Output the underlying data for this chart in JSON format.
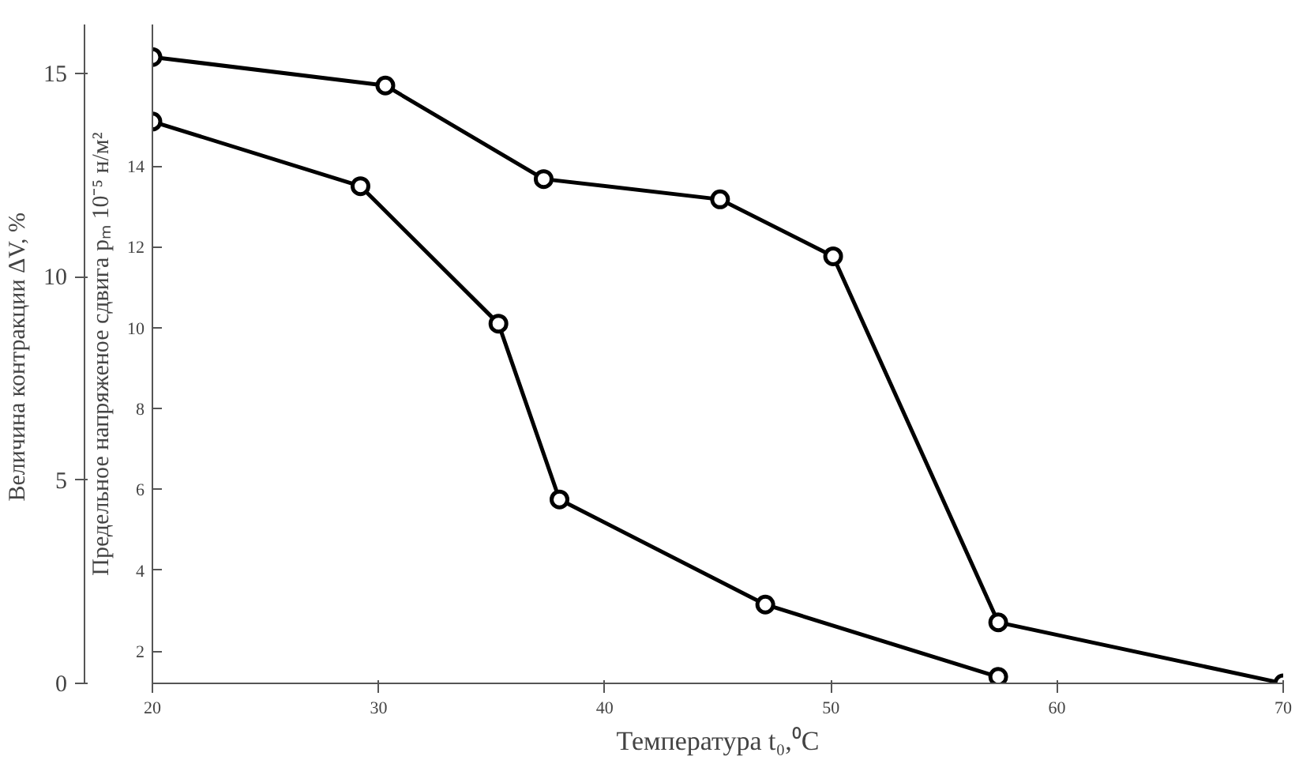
{
  "chart_data": {
    "type": "line",
    "xlabel": "Температура t₀,⁰C",
    "ylabel": "Величина контракции  ΔV, %",
    "y2label": "Предельное напряженое сдвига pₘ 10⁻⁵ н/м²",
    "series": [
      {
        "color": "#000000",
        "x": [
          20,
          30.3,
          37.3,
          45.1,
          50.1,
          57.4,
          70
        ],
        "values": [
          15.4,
          14.7,
          12.4,
          11.9,
          10.5,
          1.5,
          0
        ]
      },
      {
        "color": "#000000",
        "axis": "y2",
        "x": [
          20,
          29.2,
          35.3,
          38.0,
          47.1,
          57.4
        ],
        "values": [
          15.1,
          13.5,
          10.1,
          5.75,
          3.15,
          1.36
        ]
      }
    ],
    "xlim": [
      20,
      70
    ],
    "xticks": [
      20,
      30,
      40,
      50,
      60,
      70
    ],
    "ylim": [
      0,
      16.2
    ],
    "yticks": [
      0,
      5,
      10,
      15
    ],
    "y2lim": [
      1.2,
      17.5
    ],
    "y2ticks": [
      2,
      4,
      6,
      8,
      10,
      12,
      14
    ],
    "grid": false,
    "marker": "circle",
    "line_style": "solid"
  }
}
